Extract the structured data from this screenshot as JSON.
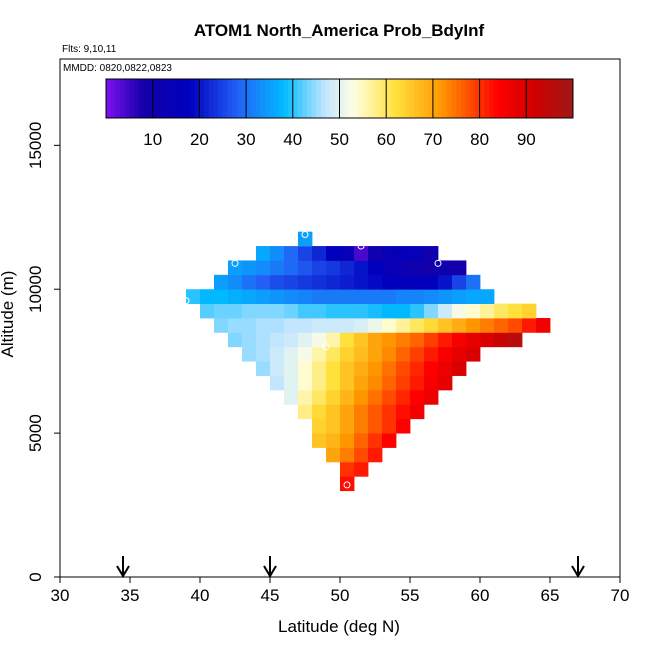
{
  "chart_data": {
    "type": "heatmap",
    "title": "ATOM1 North_America Prob_BdyInf",
    "annotations": [
      "Flts: 9,10,11",
      "MMDD: 0820,0822,0823"
    ],
    "xlabel": "Latitude (deg N)",
    "ylabel": "Altitude (m)",
    "xlim": [
      30,
      70
    ],
    "ylim": [
      0,
      18000
    ],
    "x_ticks": [
      "30",
      "35",
      "40",
      "45",
      "50",
      "55",
      "60",
      "65",
      "70"
    ],
    "y_ticks": [
      "0",
      "5000",
      "10000",
      "15000"
    ],
    "colorbar": {
      "ticks": [
        "10",
        "20",
        "30",
        "40",
        "50",
        "60",
        "70",
        "80",
        "90"
      ],
      "range": [
        0,
        100
      ]
    },
    "grid": false,
    "cell_size": {
      "lat": 1,
      "alt": 500
    },
    "rows": [
      {
        "alt": 3250,
        "lat_start": 50,
        "values": [
          83
        ]
      },
      {
        "alt": 3750,
        "lat_start": 50,
        "values": [
          80,
          82
        ]
      },
      {
        "alt": 4250,
        "lat_start": 49,
        "values": [
          70,
          74,
          78,
          82
        ]
      },
      {
        "alt": 4750,
        "lat_start": 48,
        "values": [
          66,
          68,
          72,
          76,
          80,
          84
        ]
      },
      {
        "alt": 5250,
        "lat_start": 48,
        "values": [
          64,
          66,
          70,
          74,
          77,
          80,
          84
        ]
      },
      {
        "alt": 5750,
        "lat_start": 47,
        "values": [
          58,
          63,
          66,
          70,
          74,
          77,
          80,
          83,
          86
        ]
      },
      {
        "alt": 6250,
        "lat_start": 46,
        "values": [
          50,
          56,
          60,
          64,
          68,
          72,
          75,
          78,
          81,
          84,
          87
        ]
      },
      {
        "alt": 6750,
        "lat_start": 45,
        "values": [
          47,
          50,
          54,
          58,
          62,
          66,
          70,
          73,
          76,
          79,
          82,
          85,
          88
        ]
      },
      {
        "alt": 7250,
        "lat_start": 44,
        "values": [
          45,
          48,
          50,
          54,
          58,
          62,
          66,
          69,
          72,
          75,
          78,
          81,
          84,
          87,
          90
        ]
      },
      {
        "alt": 7750,
        "lat_start": 43,
        "values": [
          45,
          46,
          48,
          50,
          52,
          56,
          60,
          64,
          67,
          70,
          73,
          76,
          79,
          82,
          85,
          88,
          90
        ]
      },
      {
        "alt": 8250,
        "lat_start": 42,
        "values": [
          44,
          45,
          46,
          47,
          48,
          50,
          52,
          56,
          62,
          66,
          70,
          72,
          74,
          76,
          79,
          82,
          85,
          88,
          90,
          93,
          96
        ]
      },
      {
        "alt": 8750,
        "lat_start": 41,
        "values": [
          44,
          45,
          45,
          46,
          46,
          47,
          47,
          48,
          48,
          48,
          49,
          51,
          54,
          57,
          60,
          63,
          66,
          69,
          72,
          74,
          76,
          78,
          82,
          86
        ]
      },
      {
        "alt": 9250,
        "lat_start": 40,
        "values": [
          42,
          43,
          43,
          44,
          44,
          44,
          43,
          41,
          41,
          40,
          40,
          40,
          39,
          38,
          38,
          40,
          44,
          48,
          52,
          54,
          57,
          60,
          62,
          64
        ]
      },
      {
        "alt": 9750,
        "lat_start": 39,
        "values": [
          40,
          38,
          38,
          37,
          36,
          35,
          34,
          33,
          32,
          31,
          31,
          31,
          31,
          31,
          31,
          32,
          32,
          33,
          34,
          35,
          36,
          36
        ]
      },
      {
        "alt": 10250,
        "lat_start": 41,
        "values": [
          35,
          33,
          30,
          28,
          26,
          25,
          24,
          23,
          22,
          21,
          20,
          19,
          18,
          17,
          17,
          18,
          20,
          25,
          30
        ]
      },
      {
        "alt": 10750,
        "lat_start": 42,
        "values": [
          35,
          34,
          33,
          31,
          29,
          27,
          25,
          24,
          22,
          20,
          17,
          14,
          11,
          10,
          9,
          10,
          8
        ]
      },
      {
        "alt": 11250,
        "lat_start": 44,
        "values": [
          36,
          33,
          29,
          25,
          22,
          18,
          14,
          4,
          10,
          14,
          16,
          14,
          10
        ]
      },
      {
        "alt": 11750,
        "lat_start": 47,
        "values": [
          35
        ]
      }
    ],
    "sample_markers": [
      {
        "lat": 50.5,
        "alt": 3200
      },
      {
        "lat": 45.0,
        "alt": 6300
      },
      {
        "lat": 49.0,
        "alt": 8000
      },
      {
        "lat": 39.0,
        "alt": 9600
      },
      {
        "lat": 42.5,
        "alt": 10900
      },
      {
        "lat": 47.5,
        "alt": 11900
      },
      {
        "lat": 51.5,
        "alt": 11500
      },
      {
        "lat": 57.0,
        "alt": 10900
      },
      {
        "lat": 63.5,
        "alt": 8000
      }
    ],
    "arrows": [
      34.5,
      45.0,
      67.0
    ]
  }
}
